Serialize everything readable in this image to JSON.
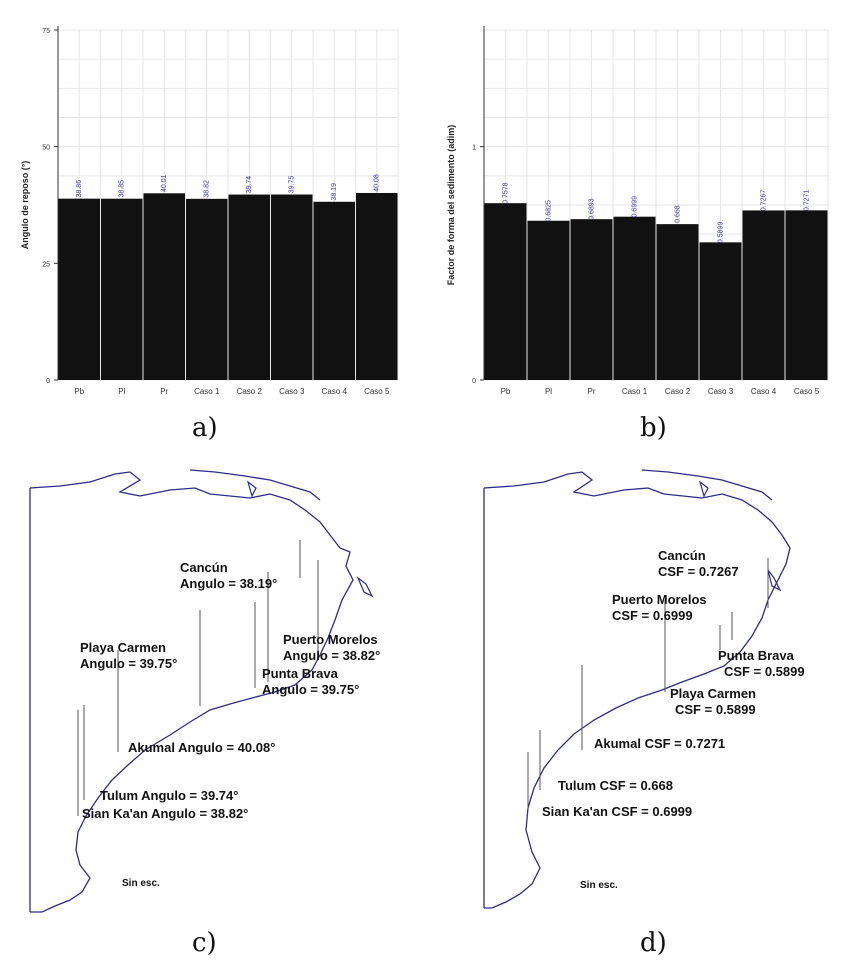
{
  "colors": {
    "bar": "#111111",
    "value_label": "#3a3aa8",
    "coast": "#2c2c8a",
    "grid": "#e6e6e6"
  },
  "captions": {
    "a": "a)",
    "b": "b)",
    "c": "c)",
    "d": "d)"
  },
  "chart_data": [
    {
      "type": "bar",
      "ylabel": "Angulo de reposo (°)",
      "categories": [
        "Pb",
        "Pl",
        "Pr",
        "Caso 1",
        "Caso 2",
        "Caso 3",
        "Caso 4",
        "Caso 5"
      ],
      "values": [
        38.86,
        38.85,
        40.01,
        38.82,
        39.74,
        39.75,
        38.19,
        40.08
      ],
      "labels": [
        "38.86",
        "38.85",
        "40.01",
        "38.82",
        "39.74",
        "39.75",
        "38.19",
        "40.08"
      ],
      "ylim": [
        0,
        75
      ],
      "yticks": [
        0,
        25,
        50,
        75
      ],
      "grid": true
    },
    {
      "type": "bar",
      "ylabel": "Factor de forma del sedimento (adim)",
      "categories": [
        "Pb",
        "Pl",
        "Pr",
        "Caso 1",
        "Caso 2",
        "Caso 3",
        "Caso 4",
        "Caso 5"
      ],
      "values": [
        0.7578,
        0.6825,
        0.6893,
        0.6999,
        0.668,
        0.5899,
        0.7267,
        0.7271
      ],
      "labels": [
        "0.7578",
        "0.6825",
        "0.6893",
        "0.6999",
        "0.668",
        "0.5899",
        "0.7267",
        "0.7271"
      ],
      "ylim": [
        0,
        1.5
      ],
      "yticks": [
        0,
        1
      ],
      "grid": true
    }
  ],
  "map_c": {
    "labels": [
      "Cancún",
      "Angulo = 38.19°",
      "Puerto Morelos",
      "Angulo = 38.82°",
      "Punta Brava",
      "Angulo = 39.75°",
      "Playa Carmen",
      "Angulo = 39.75°",
      "Akumal Angulo = 40.08°",
      "Tulum Angulo = 39.74°",
      "Sian Ka'an Angulo = 38.82°"
    ],
    "scale": "Sin esc."
  },
  "map_d": {
    "labels": [
      "Cancún",
      "CSF = 0.7267",
      "Puerto Morelos",
      "CSF = 0.6999",
      "Punta Brava",
      "CSF = 0.5899",
      "Playa Carmen",
      "CSF = 0.5899",
      "Akumal CSF = 0.7271",
      "Tulum CSF = 0.668",
      "Sian Ka'an CSF = 0.6999"
    ],
    "scale": "Sin esc."
  }
}
